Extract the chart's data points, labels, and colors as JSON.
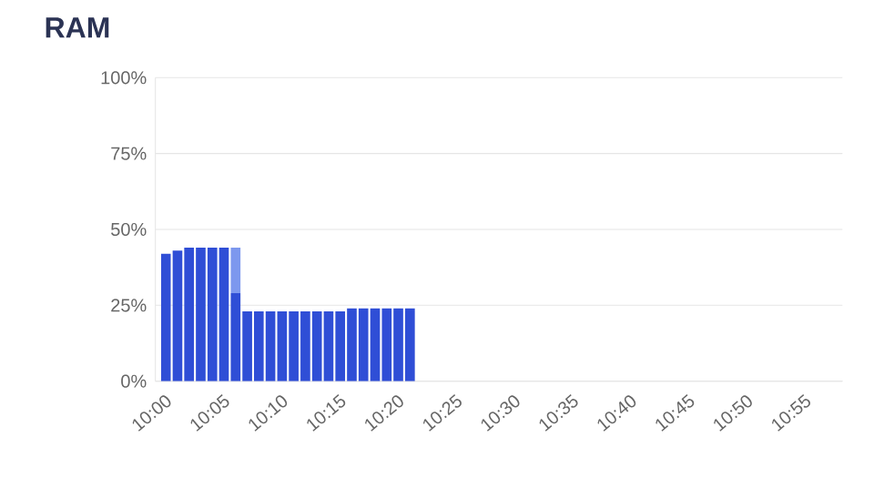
{
  "chart_data": {
    "type": "bar",
    "title": "RAM",
    "stacked": true,
    "x": [
      10,
      10.0167,
      10.0333,
      10.05,
      10.0667,
      10.0833,
      10.1,
      10.1167,
      10.1333,
      10.15,
      10.1667,
      10.1833,
      10.2,
      10.2167,
      10.2333,
      10.25,
      10.2667,
      10.2833,
      10.3,
      10.3167,
      10.3333,
      10.35
    ],
    "series": [
      {
        "color": "#2f4ed6",
        "values": [
          42,
          43,
          44,
          44,
          44,
          44,
          29,
          23,
          23,
          23,
          23,
          23,
          23,
          23,
          23,
          23,
          24,
          24,
          24,
          24,
          24,
          24
        ]
      },
      {
        "color": "#7d98ee",
        "values": [
          0,
          0,
          0,
          0,
          0,
          0,
          15,
          0,
          0,
          0,
          0,
          0,
          0,
          0,
          0,
          0,
          0,
          0,
          0,
          0,
          0,
          0
        ]
      }
    ],
    "xlim": [
      9.985,
      10.97
    ],
    "ylim": [
      0,
      100
    ],
    "yticks": [
      {
        "value": 0,
        "label": "0%"
      },
      {
        "value": 25,
        "label": "25%"
      },
      {
        "value": 50,
        "label": "50%"
      },
      {
        "value": 75,
        "label": "75%"
      },
      {
        "value": 100,
        "label": "100%"
      }
    ],
    "xticks": [
      {
        "value": 10,
        "label": "10:00"
      },
      {
        "value": 10.0833,
        "label": "10:05"
      },
      {
        "value": 10.1667,
        "label": "10:10"
      },
      {
        "value": 10.25,
        "label": "10:15"
      },
      {
        "value": 10.3333,
        "label": "10:20"
      },
      {
        "value": 10.4167,
        "label": "10:25"
      },
      {
        "value": 10.5,
        "label": "10:30"
      },
      {
        "value": 10.5833,
        "label": "10:35"
      },
      {
        "value": 10.6667,
        "label": "10:40"
      },
      {
        "value": 10.75,
        "label": "10:45"
      },
      {
        "value": 10.8333,
        "label": "10:50"
      },
      {
        "value": 10.9167,
        "label": "10:55"
      }
    ],
    "grid": "y"
  }
}
